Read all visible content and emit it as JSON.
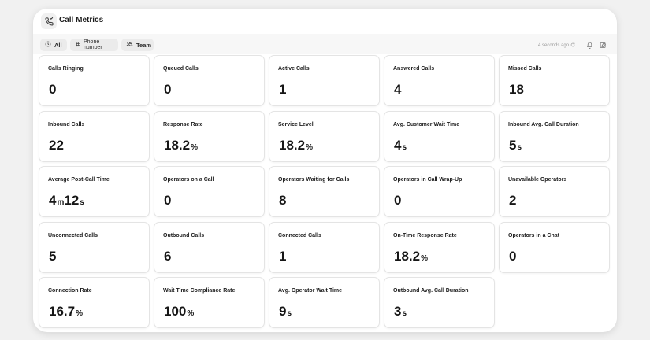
{
  "header": {
    "title": "Call Metrics",
    "icon": "phone-icon"
  },
  "toolbar": {
    "filters": [
      {
        "label": "All",
        "icon": "clock-icon",
        "selected": true
      },
      {
        "label": "Phone number",
        "icon": "hash-icon",
        "selected": false
      },
      {
        "label": "Team",
        "icon": "team-icon",
        "selected": false
      }
    ],
    "updated": "4 seconds ago"
  },
  "metrics": [
    {
      "label": "Calls Ringing",
      "parts": [
        {
          "n": "0",
          "u": ""
        }
      ]
    },
    {
      "label": "Queued Calls",
      "parts": [
        {
          "n": "0",
          "u": ""
        }
      ]
    },
    {
      "label": "Active Calls",
      "parts": [
        {
          "n": "1",
          "u": ""
        }
      ]
    },
    {
      "label": "Answered Calls",
      "parts": [
        {
          "n": "4",
          "u": ""
        }
      ]
    },
    {
      "label": "Missed Calls",
      "parts": [
        {
          "n": "18",
          "u": ""
        }
      ]
    },
    {
      "label": "Inbound Calls",
      "parts": [
        {
          "n": "22",
          "u": ""
        }
      ]
    },
    {
      "label": "Response Rate",
      "parts": [
        {
          "n": "18.2",
          "u": "%"
        }
      ]
    },
    {
      "label": "Service Level",
      "parts": [
        {
          "n": "18.2",
          "u": "%"
        }
      ]
    },
    {
      "label": "Avg. Customer Wait Time",
      "parts": [
        {
          "n": "4",
          "u": "s"
        }
      ]
    },
    {
      "label": "Inbound Avg. Call Duration",
      "parts": [
        {
          "n": "5",
          "u": "s"
        }
      ]
    },
    {
      "label": "Average Post-Call Time",
      "parts": [
        {
          "n": "4",
          "u": "m"
        },
        {
          "n": "12",
          "u": "s"
        }
      ]
    },
    {
      "label": "Operators on a Call",
      "parts": [
        {
          "n": "0",
          "u": ""
        }
      ]
    },
    {
      "label": "Operators Waiting for Calls",
      "parts": [
        {
          "n": "8",
          "u": ""
        }
      ]
    },
    {
      "label": "Operators in Call Wrap-Up",
      "parts": [
        {
          "n": "0",
          "u": ""
        }
      ]
    },
    {
      "label": "Unavailable Operators",
      "parts": [
        {
          "n": "2",
          "u": ""
        }
      ]
    },
    {
      "label": "Unconnected Calls",
      "parts": [
        {
          "n": "5",
          "u": ""
        }
      ]
    },
    {
      "label": "Outbound Calls",
      "parts": [
        {
          "n": "6",
          "u": ""
        }
      ]
    },
    {
      "label": "Connected Calls",
      "parts": [
        {
          "n": "1",
          "u": ""
        }
      ]
    },
    {
      "label": "On-Time Response Rate",
      "parts": [
        {
          "n": "18.2",
          "u": "%"
        }
      ]
    },
    {
      "label": "Operators in a Chat",
      "parts": [
        {
          "n": "0",
          "u": ""
        }
      ]
    },
    {
      "label": "Connection Rate",
      "parts": [
        {
          "n": "16.7",
          "u": "%"
        }
      ]
    },
    {
      "label": "Wait Time Compliance Rate",
      "parts": [
        {
          "n": "100",
          "u": "%"
        }
      ]
    },
    {
      "label": "Avg. Operator Wait Time",
      "parts": [
        {
          "n": "9",
          "u": "s"
        }
      ]
    },
    {
      "label": "Outbound Avg. Call Duration",
      "parts": [
        {
          "n": "3",
          "u": "s"
        }
      ]
    }
  ]
}
